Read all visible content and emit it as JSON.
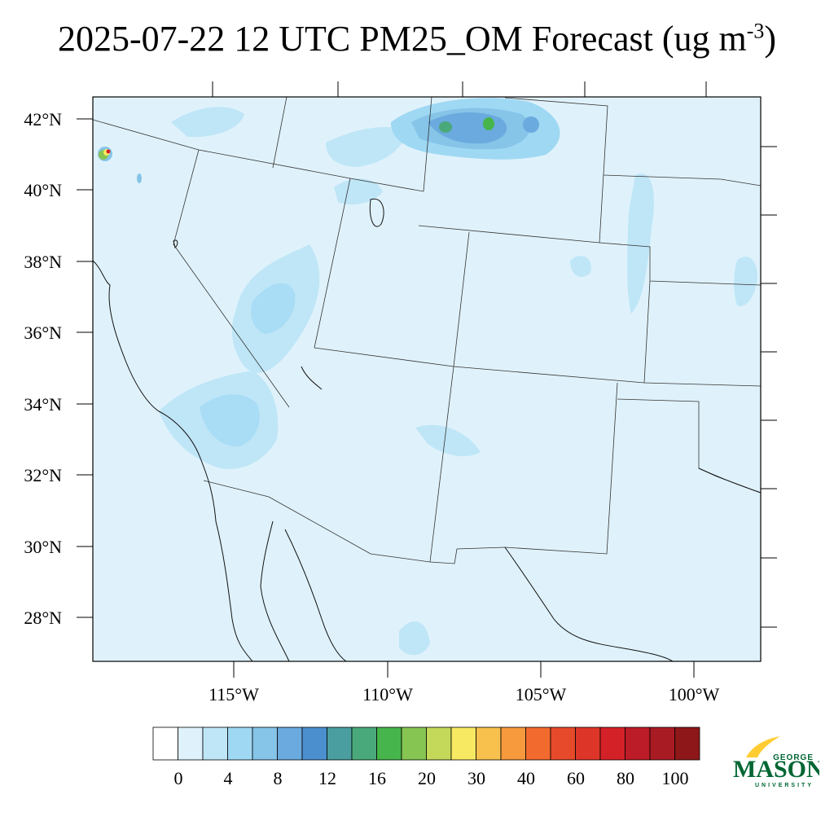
{
  "title": {
    "date": "2025-07-22",
    "time": "12 UTC",
    "variable": "PM25_OM",
    "kind": "Forecast",
    "units_prefix": "(ug m",
    "units_exponent": "-3",
    "units_suffix": ")"
  },
  "lat_labels": [
    "42°N",
    "40°N",
    "38°N",
    "36°N",
    "34°N",
    "32°N",
    "30°N",
    "28°N"
  ],
  "lon_labels": [
    "115°W",
    "110°W",
    "105°W",
    "100°W"
  ],
  "colorbar": {
    "tick_labels": [
      "0",
      "4",
      "8",
      "12",
      "16",
      "20",
      "30",
      "40",
      "60",
      "80",
      "100"
    ],
    "colors": [
      "#ffffff",
      "#dff2fb",
      "#bfe6f7",
      "#9fd8f3",
      "#86c4e8",
      "#6aaade",
      "#4c8fcf",
      "#4a9e9f",
      "#4aa97a",
      "#46b54b",
      "#86c552",
      "#c4d95a",
      "#f8e963",
      "#f8c14e",
      "#f69a3d",
      "#f26a2d",
      "#e64a2a",
      "#dd3628",
      "#d42128",
      "#bb1c27",
      "#a91b23",
      "#8d1719"
    ]
  },
  "map_colors": {
    "background": "#dff2fb",
    "plume_light": "#bfe6f7",
    "plume_mid": "#9fd8f3",
    "plume_blue": "#86c4e8",
    "plume_dark": "#6aaade",
    "plume_deep": "#4c8fcf",
    "hot_green": "#46b54b",
    "hot_teal": "#4a9e9f",
    "hot_yellow": "#f8e963",
    "hot_red": "#d42128"
  },
  "logo": {
    "line1": "GEORGE",
    "line2": "MASON",
    "line3": "UNIVERSITY",
    "green": "#006633",
    "gold": "#ffcc33"
  }
}
